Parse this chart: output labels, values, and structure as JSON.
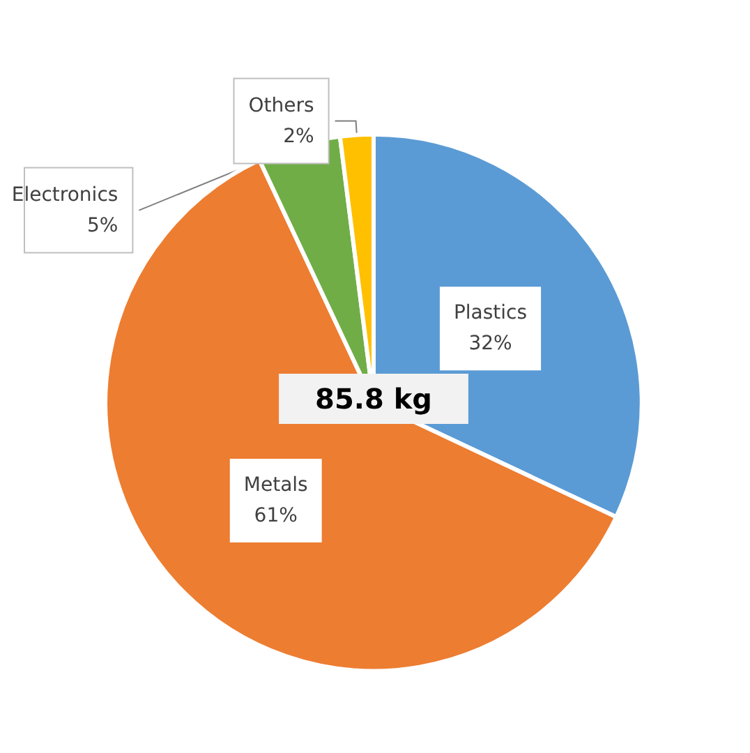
{
  "chart_data": {
    "type": "pie",
    "categories": [
      "Plastics",
      "Metals",
      "Electronics",
      "Others"
    ],
    "values": [
      32,
      61,
      5,
      2
    ],
    "colors": [
      "#5b9bd5",
      "#ed7d31",
      "#70ad47",
      "#ffc000"
    ],
    "value_labels": [
      "32%",
      "61%",
      "5%",
      "2%"
    ],
    "annotations": [
      "85.8 kg"
    ],
    "legend": false
  }
}
